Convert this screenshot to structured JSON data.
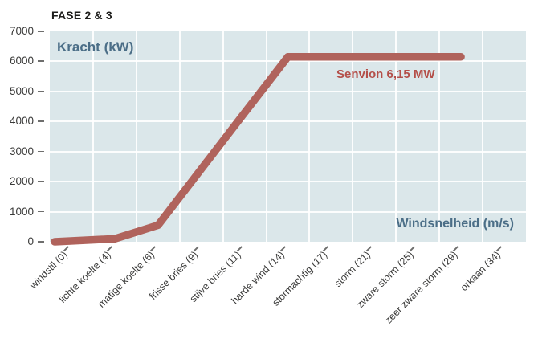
{
  "chart_data": {
    "type": "line",
    "title": "FASE 2 & 3",
    "y_axis_label": "Kracht (kW)",
    "x_axis_label": "Windsnelheid (m/s)",
    "categories": [
      "windstil (0)",
      "lichte koelte (4)",
      "matige koelte (6)",
      "frisse bries (9)",
      "stijve bries (11)",
      "harde wind (14)",
      "stormachtig (17)",
      "storm (21)",
      "zware storm (25)",
      "zeer zware storm (29)",
      "orkaan (34)"
    ],
    "series": [
      {
        "name": "Senvion 6,15 MW",
        "values": [
          0,
          100,
          550,
          2420,
          4290,
          6150,
          6150,
          6150,
          6150,
          6150,
          null
        ]
      }
    ],
    "ylim": [
      0,
      7000
    ],
    "y_ticks": [
      0,
      1000,
      2000,
      3000,
      4000,
      5000,
      6000,
      7000
    ],
    "grid": true,
    "legend_position": "inline-label-under-plateau",
    "colors": {
      "line": "#b0635c",
      "series_label": "#b44f49",
      "axis_label": "#4b6e87",
      "plot_background": "#dbe7ea",
      "gridline": "#ffffff",
      "tick_text": "#3a3a39",
      "tick_mark": "#6e6e6d",
      "title_text": "#1d1d1b"
    },
    "line_style": {
      "width": 9.5,
      "cap": "round",
      "first_point_at_left_edge": true
    }
  }
}
